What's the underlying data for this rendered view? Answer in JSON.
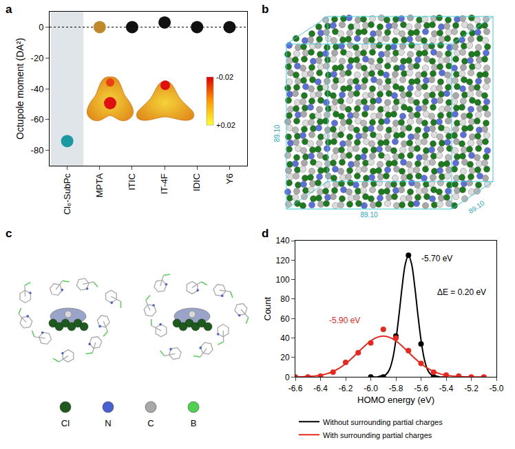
{
  "chart_data": [
    {
      "panel": "a",
      "type": "scatter",
      "categories": [
        "Cl₆-SubPc",
        "MPTA",
        "ITIC",
        "IT-4F",
        "IDIC",
        "Y6"
      ],
      "values": [
        -74,
        0,
        0,
        3,
        0,
        0
      ],
      "colors": [
        "#1a9aa0",
        "#c08a2a",
        "#111111",
        "#111111",
        "#111111",
        "#111111"
      ],
      "y_label": "Octupole moment (DA²)",
      "ylim": [
        -90,
        10
      ],
      "yticks": [
        -80,
        -60,
        -40,
        -20,
        0
      ],
      "reference_line": 0,
      "colorbar": {
        "range": [
          -0.02,
          0.02
        ],
        "ticks": [
          {
            "value": -0.02,
            "label": "-0.02"
          },
          {
            "value": 0.02,
            "label": "+0.02"
          }
        ]
      }
    },
    {
      "panel": "d",
      "type": "scatter",
      "x_label": "HOMO energy (eV)",
      "y_label": "Count",
      "xlim": [
        -6.6,
        -5.0
      ],
      "xticks": [
        -6.6,
        -6.4,
        -6.2,
        {
          "value": -6.0,
          "label": "-6.0"
        },
        -5.8,
        -5.6,
        -5.4,
        -5.2,
        {
          "value": -5.0,
          "label": "-5.0"
        }
      ],
      "ylim": [
        0,
        140
      ],
      "yticks": [
        0,
        20,
        40,
        60,
        80,
        100,
        120,
        140
      ],
      "legend": "bottom",
      "series": [
        {
          "name": "Without surrounding partial charges",
          "color": "#000000",
          "marker": "circle",
          "x": [
            -6.0,
            -5.9,
            -5.8,
            -5.7,
            -5.6,
            -5.5
          ],
          "values": [
            0,
            0,
            42,
            125,
            34,
            0
          ],
          "fit": {
            "x": [
              -6.0,
              -5.975,
              -5.95,
              -5.925,
              -5.9,
              -5.875,
              -5.85,
              -5.825,
              -5.8,
              -5.775,
              -5.75,
              -5.725,
              -5.7,
              -5.675,
              -5.65,
              -5.625,
              -5.6,
              -5.575,
              -5.55,
              -5.525,
              -5.5,
              -5.475,
              -5.45,
              -5.425,
              -5.4
            ],
            "values": [
              0,
              0,
              0,
              1,
              1,
              3,
              8,
              19,
              38,
              64,
              93,
              116,
              125,
              116,
              93,
              64,
              38,
              19,
              8,
              3,
              1,
              1,
              0,
              0,
              0
            ]
          }
        },
        {
          "name": "With surrounding partial charges",
          "color": "#e8281e",
          "marker": "circle",
          "x": [
            -6.6,
            -6.5,
            -6.4,
            -6.3,
            -6.2,
            -6.1,
            -6.0,
            -5.9,
            -5.8,
            -5.7,
            -5.6,
            -5.5,
            -5.4,
            -5.3,
            -5.2,
            -5.1
          ],
          "values": [
            0,
            0,
            1,
            5,
            15,
            25,
            35,
            49,
            40,
            27,
            14,
            5,
            2,
            1,
            0,
            0
          ],
          "fit": {
            "x": [
              -6.6,
              -6.55,
              -6.5,
              -6.45,
              -6.4,
              -6.35,
              -6.3,
              -6.25,
              -6.2,
              -6.15,
              -6.1,
              -6.05,
              -6.0,
              -5.95,
              -5.9,
              -5.85,
              -5.8,
              -5.75,
              -5.7,
              -5.65,
              -5.6,
              -5.55,
              -5.5,
              -5.45,
              -5.4,
              -5.35,
              -5.3,
              -5.25,
              -5.2,
              -5.15,
              -5.1
            ],
            "values": [
              0.1,
              0.2,
              0.5,
              1.0,
              1.8,
              3.3,
              5.7,
              9.1,
              13.6,
              19.2,
              25.5,
              31.7,
              37.1,
              40.7,
              42,
              40.7,
              37.1,
              31.7,
              25.5,
              19.2,
              13.6,
              9.1,
              5.7,
              3.3,
              1.8,
              1.0,
              0.5,
              0.2,
              0.1,
              0,
              0
            ]
          }
        }
      ],
      "annotations": [
        {
          "text": "-5.70 eV",
          "color": "#000000"
        },
        {
          "text": "-5.90 eV",
          "color": "#e8281e"
        },
        {
          "text": "ΔE = 0.20 eV",
          "color": "#000000"
        }
      ]
    }
  ],
  "panels": {
    "b": {
      "panel": "b",
      "box_labels": [
        "89.10",
        "89.10",
        "89.10"
      ]
    },
    "c": {
      "panel": "c",
      "legend": [
        {
          "name": "Cl",
          "color": "#1e5a1e"
        },
        {
          "name": "N",
          "color": "#4a5fd0"
        },
        {
          "name": "C",
          "color": "#a8a8a8"
        },
        {
          "name": "B",
          "color": "#4fd04f"
        }
      ]
    }
  }
}
